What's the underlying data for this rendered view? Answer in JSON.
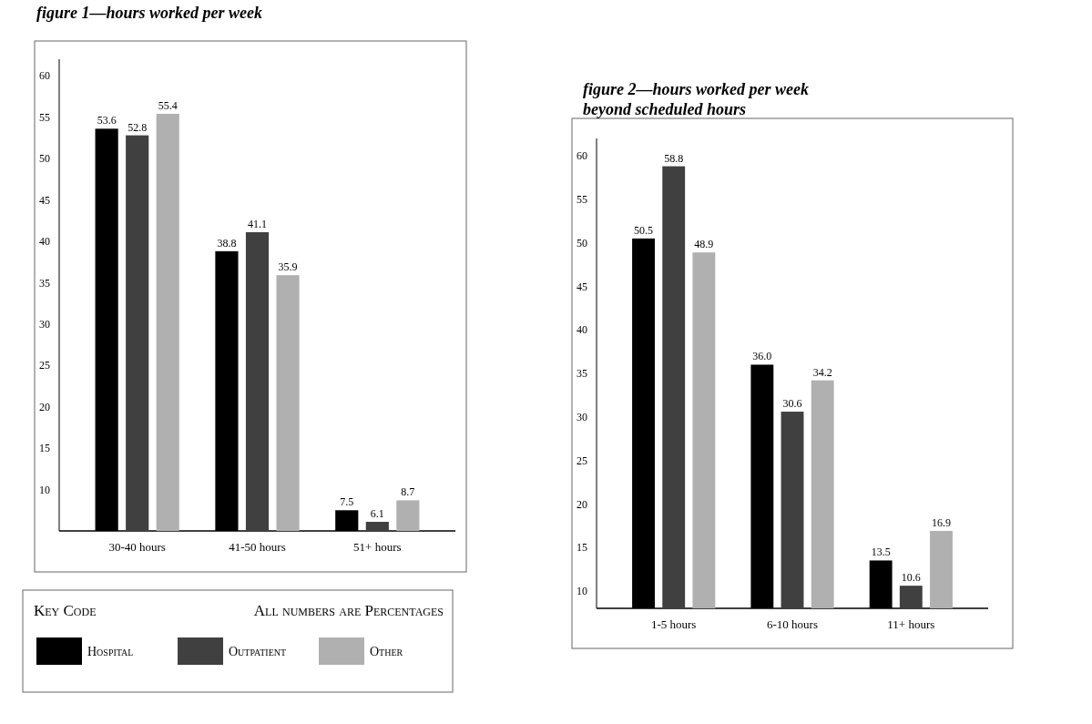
{
  "chart_data": [
    {
      "type": "bar",
      "title": "figure 1—hours worked per week",
      "categories": [
        "30-40 hours",
        "41-50 hours",
        "51+ hours"
      ],
      "series": [
        {
          "name": "Hospital",
          "color": "#000000",
          "values": [
            53.6,
            38.8,
            7.5
          ]
        },
        {
          "name": "Outpatient",
          "color": "#404040",
          "values": [
            52.8,
            41.1,
            6.1
          ]
        },
        {
          "name": "Other",
          "color": "#b0b0b0",
          "values": [
            55.4,
            35.9,
            8.7
          ]
        }
      ],
      "ylim": [
        5,
        62
      ],
      "yticks": [
        10,
        15,
        20,
        25,
        30,
        35,
        40,
        45,
        50,
        55,
        60
      ],
      "data_labels": true,
      "legend": "bottom",
      "legend_title": "Key Code",
      "annotations": [
        "All numbers are Percentages"
      ]
    },
    {
      "type": "bar",
      "title": "figure 2—hours worked per week beyond scheduled hours",
      "categories": [
        "1-5 hours",
        "6-10 hours",
        "11+ hours"
      ],
      "series": [
        {
          "color": "#000000",
          "values": [
            50.5,
            36.0,
            13.5
          ],
          "value_labels": [
            "50.5",
            "36.0",
            "13.5"
          ]
        },
        {
          "color": "#404040",
          "values": [
            58.8,
            30.6,
            10.6
          ],
          "value_labels": [
            "58.8",
            "30.6",
            "10.6"
          ]
        },
        {
          "color": "#b0b0b0",
          "values": [
            48.9,
            34.2,
            16.9
          ],
          "value_labels": [
            "48.9",
            "34.2",
            "16.9"
          ]
        }
      ],
      "ylim": [
        8,
        62
      ],
      "yticks": [
        10,
        15,
        20,
        25,
        30,
        35,
        40,
        45,
        50,
        55,
        60
      ],
      "data_labels": true
    }
  ]
}
